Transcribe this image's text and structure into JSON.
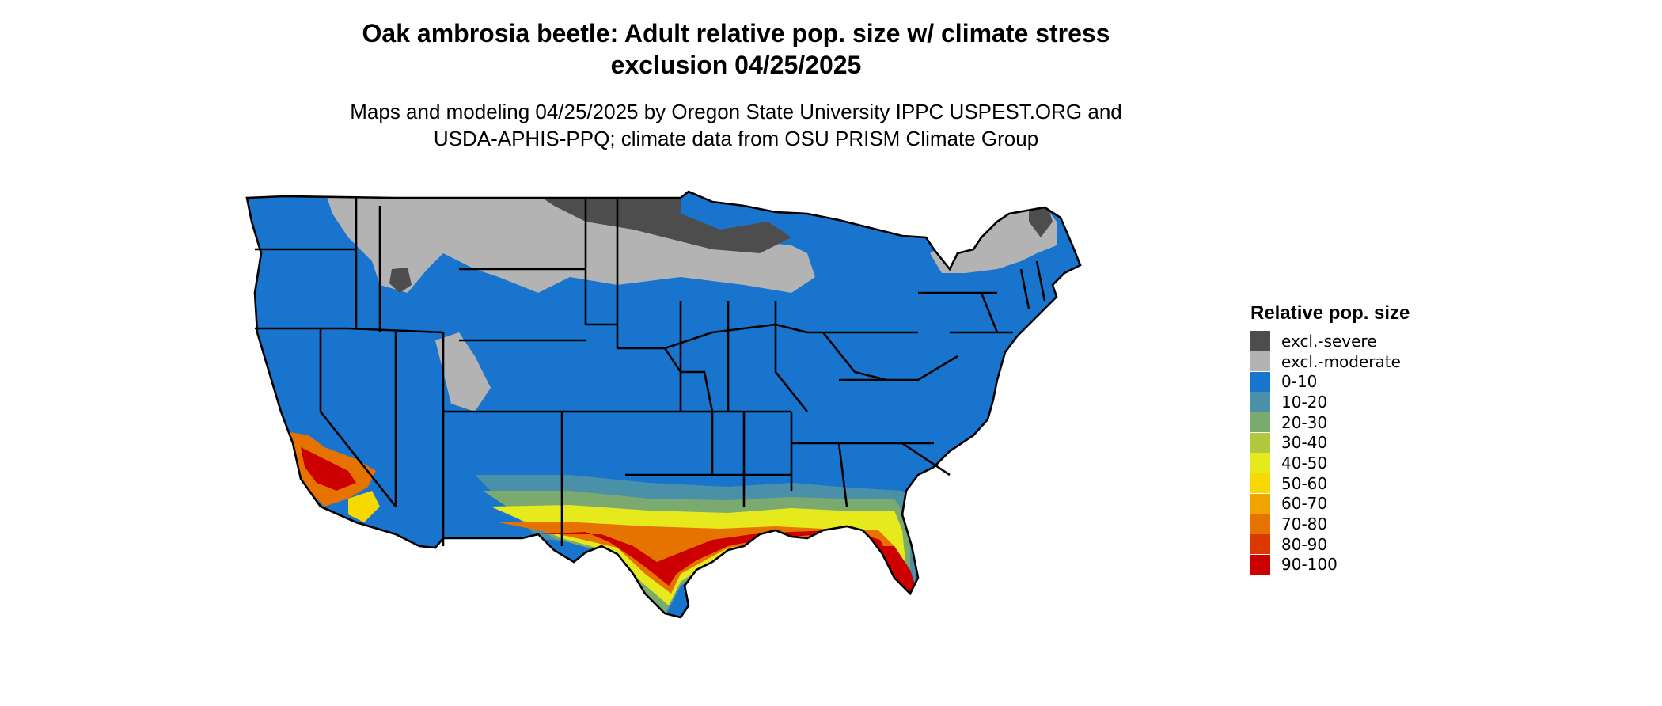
{
  "title": "Oak ambrosia beetle: Adult relative pop. size w/ climate stress\nexclusion 04/25/2025",
  "subtitle": "Maps and modeling 04/25/2025 by Oregon State University IPPC USPEST.ORG and\nUSDA-APHIS-PPQ; climate data from OSU PRISM Climate Group",
  "legend": {
    "title": "Relative pop. size",
    "items": [
      {
        "label": "excl.-severe",
        "color": "#4d4d4d"
      },
      {
        "label": "excl.-moderate",
        "color": "#b3b3b3"
      },
      {
        "label": "0-10",
        "color": "#1874cd"
      },
      {
        "label": "10-20",
        "color": "#4a90a8"
      },
      {
        "label": "20-30",
        "color": "#7aaa70"
      },
      {
        "label": "30-40",
        "color": "#b0c93c"
      },
      {
        "label": "40-50",
        "color": "#e6ea1c"
      },
      {
        "label": "50-60",
        "color": "#f7d800"
      },
      {
        "label": "60-70",
        "color": "#f0a400"
      },
      {
        "label": "70-80",
        "color": "#e67300"
      },
      {
        "label": "80-90",
        "color": "#db3800"
      },
      {
        "label": "90-100",
        "color": "#cc0000"
      }
    ]
  },
  "map": {
    "region": "contiguous United States",
    "boundary_color": "#000000"
  }
}
